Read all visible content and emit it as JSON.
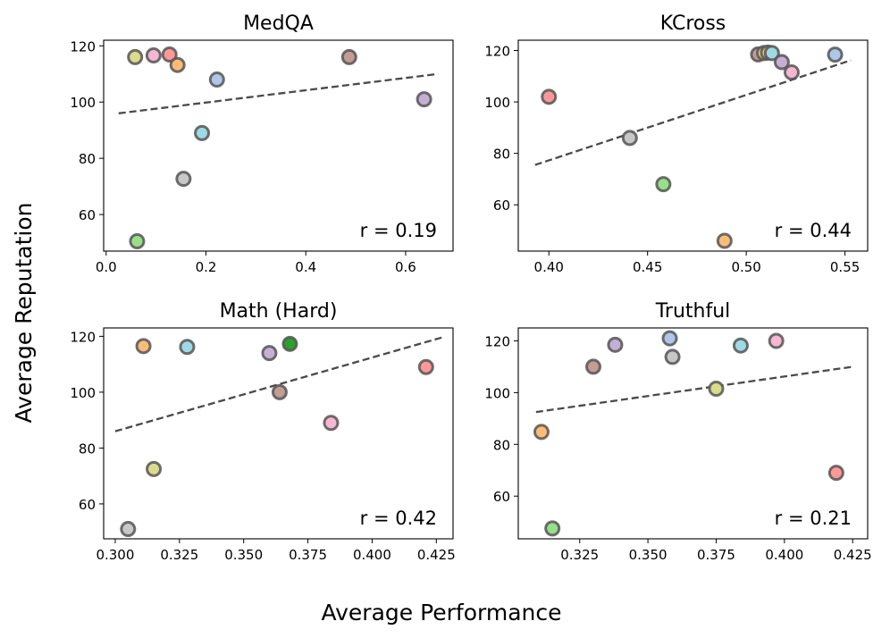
{
  "figure": {
    "xlabel": "Average Performance",
    "ylabel": "Average Reputation"
  },
  "chart_data": [
    {
      "type": "scatter",
      "title": "MedQA",
      "annotation": "r = 0.19",
      "xlim": [
        -0.005,
        0.695
      ],
      "ylim": [
        47,
        122
      ],
      "xticks": [
        0.0,
        0.2,
        0.4,
        0.6
      ],
      "xtick_labels": [
        "0.0",
        "0.2",
        "0.4",
        "0.6"
      ],
      "yticks": [
        60,
        80,
        100,
        120
      ],
      "ytick_labels": [
        "60",
        "80",
        "100",
        "120"
      ],
      "trend_line": {
        "x": [
          0.025,
          0.665
        ],
        "y": [
          96.0,
          110.0
        ]
      },
      "points": [
        {
          "x": 0.058,
          "y": 116.0,
          "color": "#dbdb8d"
        },
        {
          "x": 0.095,
          "y": 116.6,
          "color": "#f7b6d2"
        },
        {
          "x": 0.127,
          "y": 116.9,
          "color": "#ff9896"
        },
        {
          "x": 0.143,
          "y": 113.2,
          "color": "#ffbb78"
        },
        {
          "x": 0.222,
          "y": 108.0,
          "color": "#aec7e8"
        },
        {
          "x": 0.192,
          "y": 89.0,
          "color": "#9edae5"
        },
        {
          "x": 0.155,
          "y": 72.7,
          "color": "#c7c7c7"
        },
        {
          "x": 0.062,
          "y": 50.5,
          "color": "#98df8a"
        },
        {
          "x": 0.487,
          "y": 116.0,
          "color": "#c49c94"
        },
        {
          "x": 0.637,
          "y": 101.0,
          "color": "#c5b0d5"
        }
      ]
    },
    {
      "type": "scatter",
      "title": "KCross",
      "annotation": "r = 0.44",
      "xlim": [
        0.3845,
        0.5615
      ],
      "ylim": [
        42,
        124
      ],
      "xticks": [
        0.4,
        0.45,
        0.5,
        0.55
      ],
      "xtick_labels": [
        "0.40",
        "0.45",
        "0.50",
        "0.55"
      ],
      "yticks": [
        60,
        80,
        100,
        120
      ],
      "ytick_labels": [
        "60",
        "80",
        "100",
        "120"
      ],
      "trend_line": {
        "x": [
          0.393,
          0.553
        ],
        "y": [
          75.5,
          116.2
        ]
      },
      "points": [
        {
          "x": 0.4,
          "y": 102.0,
          "color": "#ff9896"
        },
        {
          "x": 0.441,
          "y": 86.0,
          "color": "#c7c7c7"
        },
        {
          "x": 0.458,
          "y": 68.0,
          "color": "#98df8a"
        },
        {
          "x": 0.489,
          "y": 46.0,
          "color": "#ffbb78"
        },
        {
          "x": 0.506,
          "y": 118.5,
          "color": "#c49c94"
        },
        {
          "x": 0.509,
          "y": 119.0,
          "color": "#dbdb8d"
        },
        {
          "x": 0.511,
          "y": 119.2,
          "color": "#ffbb78"
        },
        {
          "x": 0.513,
          "y": 119.0,
          "color": "#9edae5"
        },
        {
          "x": 0.518,
          "y": 115.5,
          "color": "#c5b0d5"
        },
        {
          "x": 0.523,
          "y": 111.5,
          "color": "#f7b6d2"
        },
        {
          "x": 0.545,
          "y": 118.4,
          "color": "#aec7e8"
        }
      ]
    },
    {
      "type": "scatter",
      "title": "Math (Hard)",
      "annotation": "r = 0.42",
      "xlim": [
        0.2955,
        0.4315
      ],
      "ylim": [
        47.5,
        123
      ],
      "xticks": [
        0.3,
        0.325,
        0.35,
        0.375,
        0.4,
        0.425
      ],
      "xtick_labels": [
        "0.300",
        "0.325",
        "0.350",
        "0.375",
        "0.400",
        "0.425"
      ],
      "yticks": [
        60,
        80,
        100,
        120
      ],
      "ytick_labels": [
        "60",
        "80",
        "100",
        "120"
      ],
      "trend_line": {
        "x": [
          0.3,
          0.428
        ],
        "y": [
          86.0,
          119.8
        ]
      },
      "points": [
        {
          "x": 0.311,
          "y": 116.5,
          "color": "#ffbb78"
        },
        {
          "x": 0.328,
          "y": 116.2,
          "color": "#9edae5"
        },
        {
          "x": 0.36,
          "y": 114.0,
          "color": "#c5b0d5"
        },
        {
          "x": 0.368,
          "y": 117.3,
          "color": "#2ca02c"
        },
        {
          "x": 0.364,
          "y": 100.0,
          "color": "#c49c94"
        },
        {
          "x": 0.384,
          "y": 89.0,
          "color": "#f7b6d2"
        },
        {
          "x": 0.315,
          "y": 72.5,
          "color": "#dbdb8d"
        },
        {
          "x": 0.305,
          "y": 51.0,
          "color": "#c7c7c7"
        },
        {
          "x": 0.421,
          "y": 109.0,
          "color": "#ff9896"
        }
      ]
    },
    {
      "type": "scatter",
      "title": "Truthful",
      "annotation": "r = 0.21",
      "xlim": [
        0.3025,
        0.4305
      ],
      "ylim": [
        43.5,
        125
      ],
      "xticks": [
        0.325,
        0.35,
        0.375,
        0.4,
        0.425
      ],
      "xtick_labels": [
        "0.325",
        "0.350",
        "0.375",
        "0.400",
        "0.425"
      ],
      "yticks": [
        60,
        80,
        100,
        120
      ],
      "ytick_labels": [
        "60",
        "80",
        "100",
        "120"
      ],
      "trend_line": {
        "x": [
          0.309,
          0.425
        ],
        "y": [
          92.5,
          110.0
        ]
      },
      "points": [
        {
          "x": 0.311,
          "y": 84.8,
          "color": "#ffbb78"
        },
        {
          "x": 0.315,
          "y": 47.5,
          "color": "#98df8a"
        },
        {
          "x": 0.33,
          "y": 110.0,
          "color": "#c49c94"
        },
        {
          "x": 0.338,
          "y": 118.5,
          "color": "#c5b0d5"
        },
        {
          "x": 0.358,
          "y": 121.0,
          "color": "#aec7e8"
        },
        {
          "x": 0.359,
          "y": 113.8,
          "color": "#c7c7c7"
        },
        {
          "x": 0.375,
          "y": 101.5,
          "color": "#dbdb8d"
        },
        {
          "x": 0.384,
          "y": 118.2,
          "color": "#9edae5"
        },
        {
          "x": 0.397,
          "y": 120.0,
          "color": "#f7b6d2"
        },
        {
          "x": 0.419,
          "y": 69.0,
          "color": "#ff9896"
        }
      ]
    }
  ]
}
